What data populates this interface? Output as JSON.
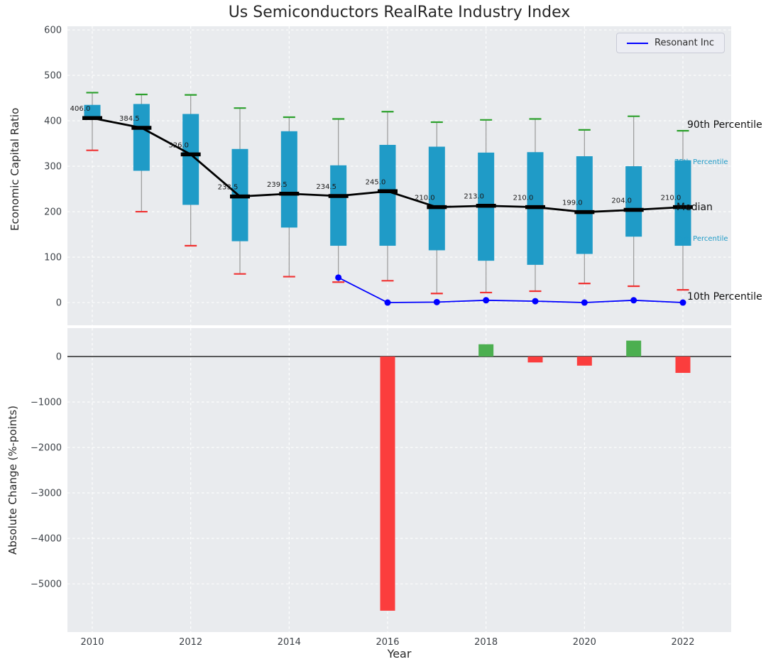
{
  "title": "Us Semiconductors RealRate Industry Index",
  "axes": {
    "top_ylabel": "Economic Capital Ratio",
    "bottom_ylabel": "Absolute Change (%-points)",
    "xlabel": "Year"
  },
  "legend": {
    "label": "Resonant Inc"
  },
  "annotations": {
    "p90": "90th Percentile",
    "p75": "75th Percentile",
    "median": "Median",
    "p25": "25th Percentile",
    "p10": "10th Percentile"
  },
  "chart_data": [
    {
      "type": "boxplot",
      "panel": "top",
      "title": "Us Semiconductors RealRate Industry Index",
      "ylabel": "Economic Capital Ratio",
      "ylim": [
        -50,
        608
      ],
      "yticks": [
        0,
        100,
        200,
        300,
        400,
        500,
        600
      ],
      "xticks": [
        2010,
        2012,
        2014,
        2016,
        2018,
        2020,
        2022
      ],
      "grid": true,
      "legend_position": "upper right",
      "years": [
        2010,
        2011,
        2012,
        2013,
        2014,
        2015,
        2016,
        2017,
        2018,
        2019,
        2020,
        2021,
        2022
      ],
      "p90": [
        462,
        458,
        457,
        428,
        408,
        404,
        420,
        397,
        402,
        404,
        380,
        410,
        378
      ],
      "p75": [
        435,
        437,
        415,
        338,
        377,
        302,
        347,
        343,
        330,
        331,
        322,
        300,
        313
      ],
      "median": [
        406,
        384.5,
        326,
        233.5,
        239.5,
        234.5,
        245,
        210,
        213,
        210,
        199,
        204,
        210
      ],
      "median_labels": [
        "406.0",
        "384.5",
        "326.0",
        "233.5",
        "239.5",
        "234.5",
        "245.0",
        "210.0",
        "213.0",
        "210.0",
        "199.0",
        "204.0",
        "210.0"
      ],
      "p25": [
        405,
        290,
        215,
        135,
        165,
        125,
        125,
        115,
        92,
        83,
        107,
        145,
        125
      ],
      "p10": [
        335,
        200,
        125,
        63,
        57,
        45,
        48,
        20,
        22,
        25,
        42,
        36,
        28
      ],
      "line_series": {
        "name": "Resonant Inc",
        "x": [
          2015,
          2016,
          2017,
          2018,
          2019,
          2020,
          2021,
          2022
        ],
        "y": [
          55,
          0,
          1,
          5,
          3,
          0,
          5,
          0
        ]
      },
      "colors": {
        "box": "#1f9bc7",
        "p90_cap": "#2ca02c",
        "p10_cap": "#f03232",
        "median": "#000000",
        "whisker": "#999999",
        "line": "#0000ff",
        "background": "#e9ebee",
        "grid": "#ffffff"
      }
    },
    {
      "type": "bar",
      "panel": "bottom",
      "ylabel": "Absolute Change (%-points)",
      "xlabel": "Year",
      "ylim": [
        -6060,
        625
      ],
      "yticks": [
        0,
        -1000,
        -2000,
        -3000,
        -4000,
        -5000
      ],
      "xticks": [
        2010,
        2012,
        2014,
        2016,
        2018,
        2020,
        2022
      ],
      "grid": true,
      "categories": [
        2016,
        2018,
        2019,
        2020,
        2021,
        2022
      ],
      "values": [
        -5590,
        270,
        -130,
        -200,
        350,
        -360
      ],
      "colors": {
        "positive": "#4caf50",
        "negative": "#fb3d3d",
        "zero_line": "#000000",
        "background": "#e9ebee"
      }
    }
  ]
}
